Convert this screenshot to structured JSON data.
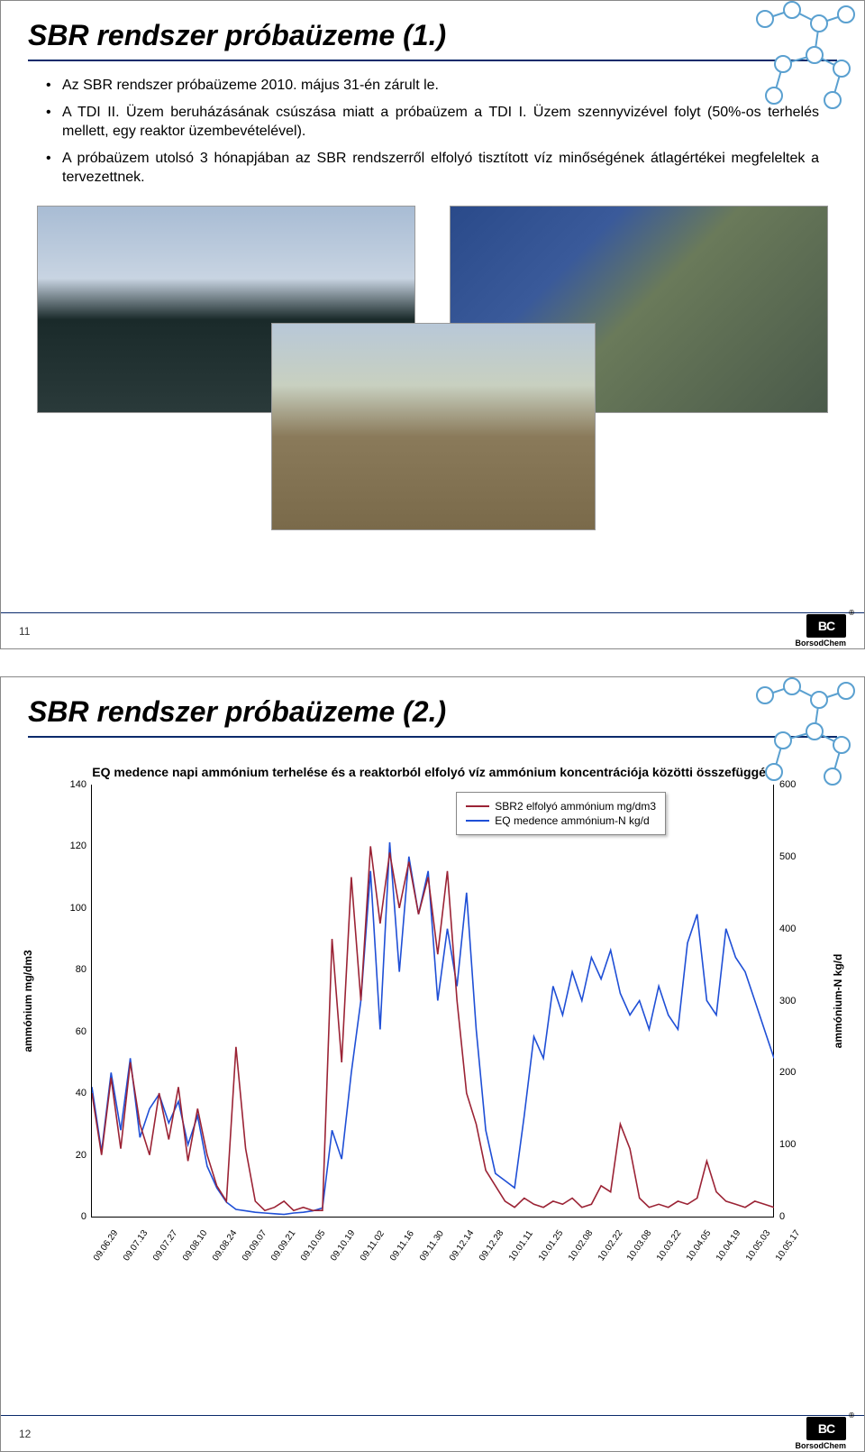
{
  "slide1": {
    "title": "SBR rendszer próbaüzeme (1.)",
    "bullets": [
      "Az SBR rendszer próbaüzeme 2010. május 31-én zárult le.",
      "A TDI II. Üzem beruházásának csúszása miatt a próbaüzem a TDI I. Üzem szennyvizével folyt (50%-os terhelés mellett, egy reaktor üzembevételével).",
      "A próbaüzem utolsó 3 hónapjában az SBR rendszerről elfolyó tisztított víz minőségének átlagértékei megfeleltek a tervezettnek."
    ],
    "page_number": "11",
    "logo_text": "BC",
    "logo_name": "BorsodChem"
  },
  "slide2": {
    "title": "SBR rendszer próbaüzeme (2.)",
    "page_number": "12",
    "logo_text": "BC",
    "logo_name": "BorsodChem",
    "chart": {
      "type": "line",
      "title": "EQ medence napi ammónium terhelése és a reaktorból elfolyó víz ammónium koncentrációja közötti összefüggés",
      "y_left_label": "ammónium mg/dm3",
      "y_right_label": "ammónium-N kg/d",
      "y_left": {
        "min": 0,
        "max": 140,
        "step": 20
      },
      "y_right": {
        "min": 0,
        "max": 600,
        "step": 100
      },
      "x_labels": [
        "09.06.29",
        "09.07.13",
        "09.07.27",
        "09.08.10",
        "09.08.24",
        "09.09.07",
        "09.09.21",
        "09.10.05",
        "09.10.19",
        "09.11.02",
        "09.11.16",
        "09.11.30",
        "09.12.14",
        "09.12.28",
        "10.01.11",
        "10.01.25",
        "10.02.08",
        "10.02.22",
        "10.03.08",
        "10.03.22",
        "10.04.05",
        "10.04.19",
        "10.05.03",
        "10.05.17"
      ],
      "legend": {
        "series1": "SBR2 elfolyó ammónium mg/dm3",
        "series2": "EQ medence ammónium-N kg/d"
      },
      "colors": {
        "series1": "#9b2335",
        "series2": "#1f4fd6",
        "background": "#ffffff",
        "axis": "#000000"
      },
      "line_width": 1.6,
      "series1_values": [
        40,
        20,
        45,
        22,
        50,
        30,
        20,
        40,
        25,
        42,
        18,
        35,
        20,
        10,
        5,
        55,
        22,
        5,
        2,
        3,
        5,
        2,
        3,
        2,
        2,
        90,
        50,
        110,
        70,
        120,
        95,
        118,
        100,
        115,
        98,
        110,
        85,
        112,
        70,
        40,
        30,
        15,
        10,
        5,
        3,
        6,
        4,
        3,
        5,
        4,
        6,
        3,
        4,
        10,
        8,
        30,
        22,
        6,
        3,
        4,
        3,
        5,
        4,
        6,
        18,
        8,
        5,
        4,
        3,
        5,
        4,
        3
      ],
      "series2_values": [
        180,
        90,
        200,
        120,
        220,
        110,
        150,
        170,
        130,
        160,
        100,
        140,
        70,
        40,
        20,
        10,
        8,
        6,
        5,
        4,
        3,
        5,
        6,
        8,
        12,
        120,
        80,
        200,
        300,
        480,
        260,
        520,
        340,
        500,
        420,
        480,
        300,
        400,
        320,
        450,
        260,
        120,
        60,
        50,
        40,
        140,
        250,
        220,
        320,
        280,
        340,
        300,
        360,
        330,
        370,
        310,
        280,
        300,
        260,
        320,
        280,
        260,
        380,
        420,
        300,
        280,
        400,
        360,
        340,
        300,
        260,
        220
      ]
    }
  }
}
